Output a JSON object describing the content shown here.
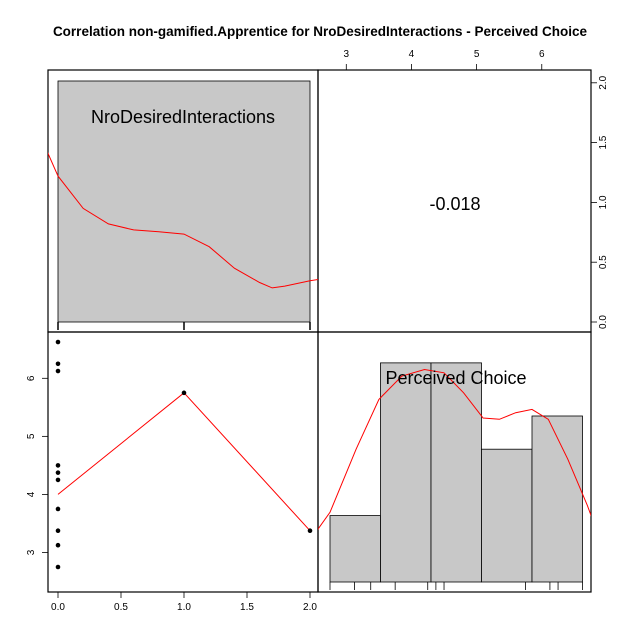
{
  "chart_data": {
    "type": "scatter",
    "title": "Correlation non-gamified.Apprentice for NroDesiredInteractions - Perceived Choice",
    "variables": [
      "NroDesiredInteractions",
      "Perceived Choice"
    ],
    "correlation_label": "-0.018",
    "axes": {
      "x_bottom_ticks": [
        "0.0",
        "0.5",
        "1.0",
        "1.5",
        "2.0"
      ],
      "x_top_ticks": [
        "3",
        "4",
        "5",
        "6"
      ],
      "y_left_ticks": [
        "3",
        "4",
        "5",
        "6"
      ],
      "y_right_ticks": [
        "0.0",
        "0.5",
        "1.0",
        "1.5",
        "2.0"
      ],
      "x_range": [
        0,
        2
      ],
      "y_range": [
        2.75,
        6.625
      ]
    },
    "scatter": {
      "points": [
        {
          "x": 0,
          "y": 6.625
        },
        {
          "x": 0,
          "y": 6.25
        },
        {
          "x": 0,
          "y": 6.125
        },
        {
          "x": 0,
          "y": 4.5
        },
        {
          "x": 0,
          "y": 4.375
        },
        {
          "x": 0,
          "y": 4.25
        },
        {
          "x": 0,
          "y": 3.75
        },
        {
          "x": 0,
          "y": 3.375
        },
        {
          "x": 0,
          "y": 3.125
        },
        {
          "x": 0,
          "y": 2.75
        },
        {
          "x": 1,
          "y": 5.75
        },
        {
          "x": 2,
          "y": 3.375
        }
      ],
      "smooth_line": [
        {
          "x": 0,
          "y": 4.0
        },
        {
          "x": 1,
          "y": 5.75
        },
        {
          "x": 2,
          "y": 3.375
        }
      ]
    },
    "hist_nro": {
      "bins": [
        [
          0,
          2
        ]
      ],
      "counts": [
        1
      ],
      "rug": [
        0,
        1,
        2
      ],
      "density": [
        {
          "x": -0.37,
          "y": 2.2
        },
        {
          "x": -0.2,
          "y": 1.7
        },
        {
          "x": 0.0,
          "y": 1.22
        },
        {
          "x": 0.2,
          "y": 0.95
        },
        {
          "x": 0.4,
          "y": 0.82
        },
        {
          "x": 0.6,
          "y": 0.77
        },
        {
          "x": 0.8,
          "y": 0.755
        },
        {
          "x": 1.0,
          "y": 0.735
        },
        {
          "x": 1.2,
          "y": 0.63
        },
        {
          "x": 1.4,
          "y": 0.45
        },
        {
          "x": 1.6,
          "y": 0.33
        },
        {
          "x": 1.7,
          "y": 0.285
        },
        {
          "x": 1.8,
          "y": 0.3
        },
        {
          "x": 2.0,
          "y": 0.345
        },
        {
          "x": 2.1,
          "y": 0.36
        },
        {
          "x": 2.2,
          "y": 0.35
        }
      ]
    },
    "hist_choice": {
      "bins": [
        [
          2.75,
          3.525
        ],
        [
          3.525,
          4.3
        ],
        [
          4.3,
          5.075
        ],
        [
          5.075,
          5.85
        ],
        [
          5.85,
          6.625
        ]
      ],
      "counts": [
        1,
        3.3,
        3.3,
        2.0,
        2.5
      ],
      "ylim": [
        0,
        3.66
      ],
      "rug": [
        2.75,
        3.125,
        3.375,
        3.75,
        4.25,
        4.375,
        4.5,
        5.75,
        6.125,
        6.25,
        6.625
      ],
      "density": [
        {
          "x": 2.0,
          "y": 0.0
        },
        {
          "x": 2.35,
          "y": 0.5
        },
        {
          "x": 2.75,
          "y": 1.05
        },
        {
          "x": 3.15,
          "y": 2.0
        },
        {
          "x": 3.5,
          "y": 2.75
        },
        {
          "x": 3.85,
          "y": 3.1
        },
        {
          "x": 4.2,
          "y": 3.2
        },
        {
          "x": 4.5,
          "y": 3.15
        },
        {
          "x": 4.8,
          "y": 2.85
        },
        {
          "x": 5.1,
          "y": 2.47
        },
        {
          "x": 5.35,
          "y": 2.45
        },
        {
          "x": 5.6,
          "y": 2.55
        },
        {
          "x": 5.85,
          "y": 2.6
        },
        {
          "x": 6.1,
          "y": 2.45
        },
        {
          "x": 6.4,
          "y": 1.85
        },
        {
          "x": 6.7,
          "y": 1.15
        },
        {
          "x": 6.9,
          "y": 0.62
        }
      ]
    }
  },
  "colors": {
    "bar_fill": "#c8c8c8",
    "density_line": "#ff0000",
    "points": "#000000"
  }
}
